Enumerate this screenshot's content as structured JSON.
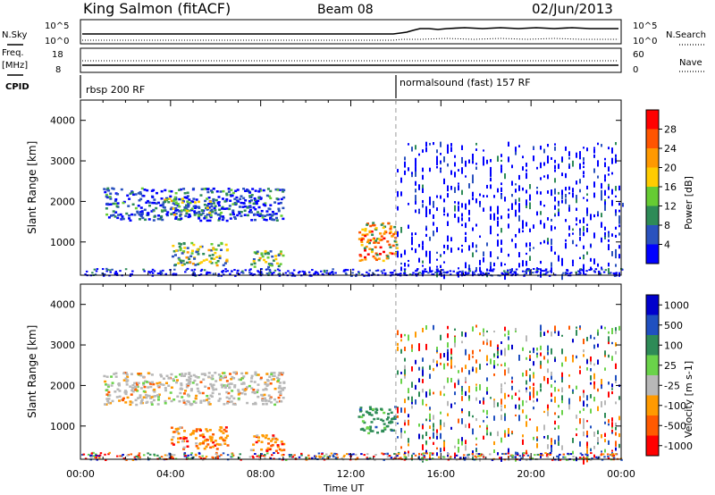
{
  "header": {
    "station": "King Salmon (fitACF)",
    "beam": "Beam 08",
    "date": "02/Jun/2013"
  },
  "strip": {
    "nsky_label": "N.Sky",
    "nsearch_label": "N.Search",
    "nsky_ticks": [
      "10^5",
      "10^0"
    ],
    "nsearch_ticks": [
      "10^5",
      "10^0"
    ],
    "freq_label": "Freq.",
    "freq_unit": "[MHz]",
    "freq_ticks": [
      "18",
      "8"
    ],
    "nave_label": "Nave",
    "nave_ticks": [
      "60",
      "0"
    ],
    "cpid_label": "CPID",
    "cpid_segments": [
      {
        "label": "rbsp 200 RF",
        "start_hour": 0
      },
      {
        "label": "normalsound (fast) 157 RF",
        "start_hour": 14
      }
    ]
  },
  "colors": {
    "power_scale": [
      "#0000ff",
      "#2a52be",
      "#2e8b57",
      "#66cc33",
      "#ffcc00",
      "#ff9900",
      "#ff5500",
      "#ff0000"
    ],
    "velocity_scale": [
      "#ff0000",
      "#ff5a00",
      "#ff9a00",
      "#b8b8b8",
      "#6ad34a",
      "#2e8b57",
      "#2050c0",
      "#0000cc"
    ],
    "marker_line": "#999999"
  },
  "chart_data": [
    {
      "type": "heatmap",
      "name": "power",
      "xlabel": "Time UT",
      "ylabel": "Slant Range [km]",
      "x_range_hours": [
        0,
        24
      ],
      "ylim": [
        180,
        4500
      ],
      "x_ticks": [
        "00:00",
        "04:00",
        "08:00",
        "12:00",
        "16:00",
        "20:00",
        "00:00"
      ],
      "y_ticks": [
        1000,
        2000,
        3000,
        4000
      ],
      "colorbar": {
        "label": "Power [dB]",
        "tick_labels": [
          "28",
          "24",
          "20",
          "16",
          "12",
          "8",
          "4"
        ],
        "range": [
          0,
          32
        ]
      },
      "regions": [
        {
          "t0": 1.0,
          "t1": 9.0,
          "r0": 1550,
          "r1": 2350,
          "level": "low-mid"
        },
        {
          "t0": 3.5,
          "t1": 6.0,
          "r0": 1700,
          "r1": 2100,
          "level": "mid"
        },
        {
          "t0": 4.0,
          "t1": 6.5,
          "r0": 450,
          "r1": 1000,
          "level": "mid"
        },
        {
          "t0": 7.5,
          "t1": 9.0,
          "r0": 400,
          "r1": 800,
          "level": "mid"
        },
        {
          "t0": 12.3,
          "t1": 14.0,
          "r0": 550,
          "r1": 1500,
          "level": "high"
        },
        {
          "t0": 14.0,
          "t1": 24.0,
          "r0": 200,
          "r1": 3500,
          "level": "low"
        }
      ]
    },
    {
      "type": "heatmap",
      "name": "velocity",
      "xlabel": "Time UT",
      "ylabel": "Slant Range [km]",
      "x_range_hours": [
        0,
        24
      ],
      "ylim": [
        180,
        4500
      ],
      "x_ticks": [
        "00:00",
        "04:00",
        "08:00",
        "12:00",
        "16:00",
        "20:00",
        "00:00"
      ],
      "y_ticks": [
        1000,
        2000,
        3000,
        4000
      ],
      "colorbar": {
        "label": "Velocity [m s-1]",
        "tick_labels": [
          "1000",
          "500",
          "100",
          "25",
          "-25",
          "-100",
          "-500",
          "-1000"
        ],
        "range": [
          -1000,
          1000
        ]
      },
      "regions": [
        {
          "t0": 1.0,
          "t1": 9.0,
          "r0": 1550,
          "r1": 2350,
          "level": "near-zero"
        },
        {
          "t0": 4.0,
          "t1": 6.5,
          "r0": 450,
          "r1": 1000,
          "level": "negative"
        },
        {
          "t0": 7.5,
          "t1": 9.0,
          "r0": 400,
          "r1": 800,
          "level": "negative"
        },
        {
          "t0": 12.3,
          "t1": 14.0,
          "r0": 850,
          "r1": 1500,
          "level": "positive"
        },
        {
          "t0": 14.0,
          "t1": 24.0,
          "r0": 200,
          "r1": 3500,
          "level": "mixed"
        }
      ]
    }
  ]
}
